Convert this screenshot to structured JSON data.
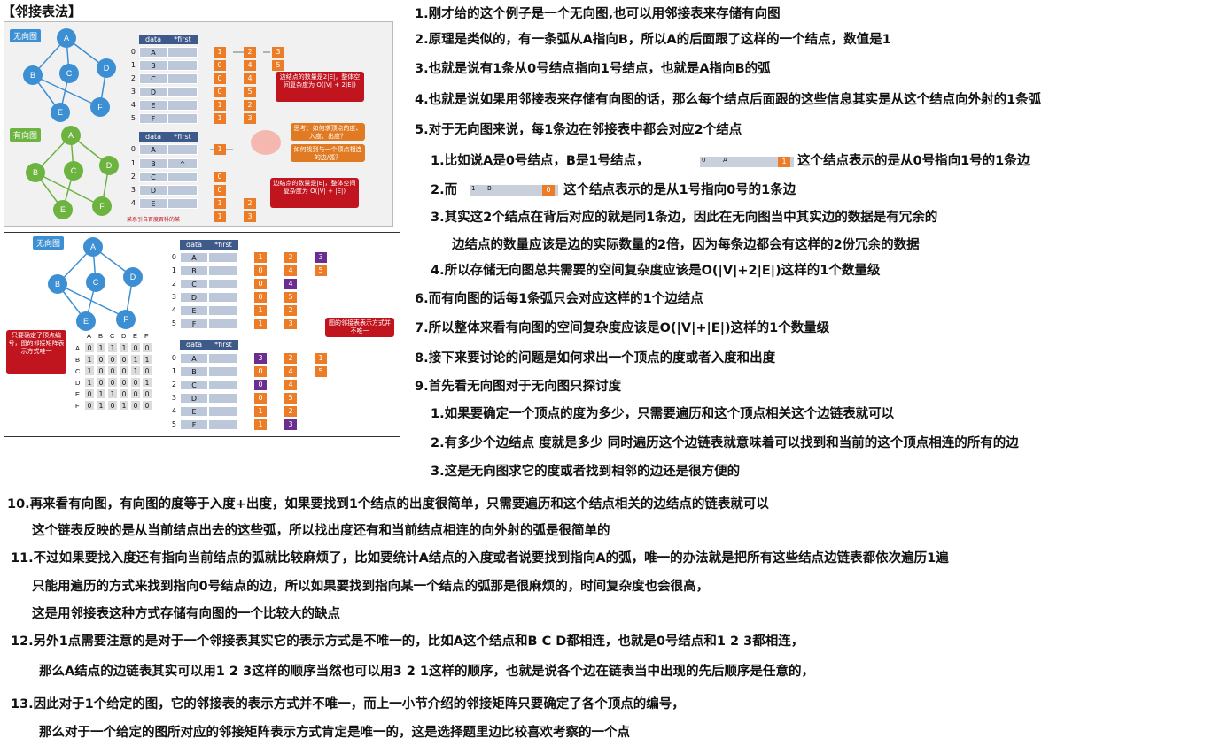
{
  "title": "【邻接表法】",
  "fig1": {
    "tag_undirected": "无向图",
    "tag_directed": "有向图",
    "headers": [
      "data",
      "*first"
    ],
    "nodes": [
      "A",
      "B",
      "C",
      "D",
      "E",
      "F"
    ],
    "indices": [
      "0",
      "1",
      "2",
      "3",
      "4",
      "5"
    ],
    "bubble1": "边结点的数量是2|E|，整体空间复杂度为 O(|V| + 2|E|)",
    "bubble2": "思考：如何求顶点的度、入度、出度？",
    "bubble3": "如何找到与一个顶点相连的边/弧？",
    "bubble4": "边结点的数量是|E|，整体空间复杂度为 O(|V| + |E|)",
    "caret": "^",
    "footer": "某系引自百度百科的某"
  },
  "fig2": {
    "tag": "无向图",
    "bubble_left": "只要确定了顶点编号，图的邻接矩阵表示方式唯一",
    "bubble_right": "图的邻接表表示方式并不唯一",
    "matrix_cols": [
      "A",
      "B",
      "C",
      "D",
      "E",
      "F"
    ],
    "matrix": [
      [
        "0",
        "1",
        "1",
        "1",
        "0",
        "0"
      ],
      [
        "1",
        "0",
        "0",
        "0",
        "1",
        "1"
      ],
      [
        "1",
        "0",
        "0",
        "0",
        "1",
        "0"
      ],
      [
        "1",
        "0",
        "0",
        "0",
        "0",
        "1"
      ],
      [
        "0",
        "1",
        "1",
        "0",
        "0",
        "0"
      ],
      [
        "0",
        "1",
        "0",
        "1",
        "0",
        "0"
      ]
    ]
  },
  "lines": [
    "1.刚才给的这个例子是一个无向图,也可以用邻接表来存储有向图",
    "2.原理是类似的，有一条弧从A指向B，所以A的后面跟了这样的一个结点，数值是1",
    "3.也就是说有1条从0号结点指向1号结点，也就是A指向B的弧",
    "4.也就是说如果用邻接表来存储有向图的话，那么每个结点后面跟的这些信息其实是从这个结点向外射的1条弧",
    "5.对于无向图来说，每1条边在邻接表中都会对应2个结点",
    "1.比如说A是0号结点，B是1号结点，",
    "这个结点表示的是从0号指向1号的1条边",
    "2.而",
    "这个结点表示的是从1号指向0号的1条边",
    "3.其实这2个结点在背后对应的就是同1条边，因此在无向图当中其实边的数据是有冗余的",
    "边结点的数量应该是边的实际数量的2倍，因为每条边都会有这样的2份冗余的数据",
    "4.所以存储无向图总共需要的空间复杂度应该是O(|V|+2|E|)这样的1个数量级",
    "6.而有向图的话每1条弧只会对应这样的1个边结点",
    "7.所以整体来看有向图的空间复杂度应该是O(|V|+|E|)这样的1个数量级",
    "8.接下来要讨论的问题是如何求出一个顶点的度或者入度和出度",
    "9.首先看无向图对于无向图只探讨度",
    "1.如果要确定一个顶点的度为多少，只需要遍历和这个顶点相关这个边链表就可以",
    "2.有多少个边结点 度就是多少 同时遍历这个边链表就意味着可以找到和当前的这个顶点相连的所有的边",
    "3.这是无向图求它的度或者找到相邻的边还是很方便的",
    "10.再来看有向图，有向图的度等于入度+出度，如果要找到1个结点的出度很简单，只需要遍历和这个结点相关的边结点的链表就可以",
    "这个链表反映的是从当前结点出去的这些弧，所以找出度还有和当前结点相连的向外射的弧是很简单的",
    "11.不过如果要找入度还有指向当前结点的弧就比较麻烦了，比如要统计A结点的入度或者说要找到指向A的弧，唯一的办法就是把所有这些结点边链表都依次遍历1遍",
    "只能用遍历的方式来找到指向0号结点的边，所以如果要找到指向某一个结点的弧那是很麻烦的，时间复杂度也会很高，",
    "这是用邻接表这种方式存储有向图的一个比较大的缺点",
    "12.另外1点需要注意的是对于一个邻接表其实它的表示方式是不唯一的，比如A这个结点和B C D都相连，也就是0号结点和1 2 3都相连，",
    "那么A结点的边链表其实可以用1 2 3这样的顺序当然也可以用3 2 1这样的顺序，也就是说各个边在链表当中出现的先后顺序是任意的，",
    "13.因此对于1个给定的图，它的邻接表的表示方式并不唯一，而上一小节介绍的邻接矩阵只要确定了各个顶点的编号，",
    "那么对于一个给定的图所对应的邻接矩阵表示方式肯定是唯一的，这是选择题里边比较喜欢考察的一个点"
  ],
  "inline1": {
    "a": "0",
    "b": "A",
    "c": "1"
  },
  "inline2": {
    "a": "1",
    "b": "B",
    "c": "0"
  }
}
